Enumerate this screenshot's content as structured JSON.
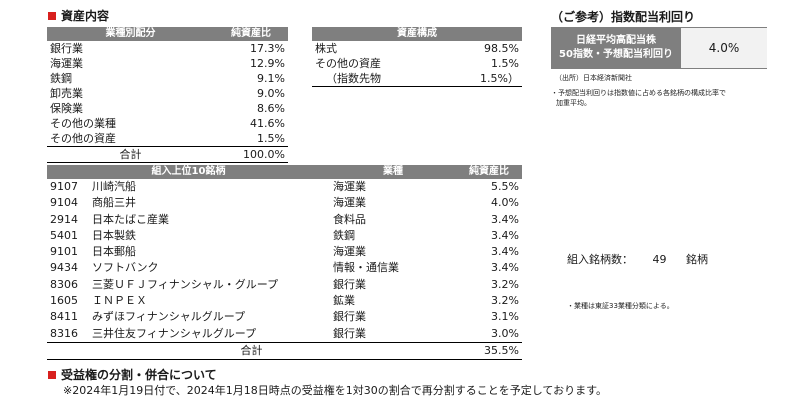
{
  "section1": {
    "title": "資産内容"
  },
  "industry": {
    "header": [
      "業種別配分",
      "純資産比"
    ],
    "rows": [
      {
        "name": "銀行業",
        "value": "17.3%"
      },
      {
        "name": "海運業",
        "value": "12.9%"
      },
      {
        "name": "鉄鋼",
        "value": "9.1%"
      },
      {
        "name": "卸売業",
        "value": "9.0%"
      },
      {
        "name": "保険業",
        "value": "8.6%"
      },
      {
        "name": "その他の業種",
        "value": "41.6%"
      },
      {
        "name": "その他の資産",
        "value": "1.5%"
      }
    ],
    "total_label": "合計",
    "total_value": "100.0%"
  },
  "composition": {
    "header": "資産構成",
    "rows": [
      {
        "name": "株式",
        "value": "98.5%"
      },
      {
        "name": "その他の資産",
        "value": "1.5%"
      },
      {
        "name": "（指数先物",
        "value": "1.5%）"
      }
    ]
  },
  "reference": {
    "title": "（ご参考）指数配当利回り",
    "label_line1": "日経平均高配当株",
    "label_line2": "50指数・予想配当利回り",
    "value": "4.0%",
    "source": "（出所）日本経済新聞社",
    "note1": "・予想配当利回りは指数値に占める各銘柄の構成比率で",
    "note2": "加重平均。"
  },
  "top10": {
    "header": [
      "組入上位10銘柄",
      "業種",
      "純資産比"
    ],
    "rows": [
      {
        "code": "9107",
        "name": "川崎汽船",
        "industry": "海運業",
        "value": "5.5%"
      },
      {
        "code": "9104",
        "name": "商船三井",
        "industry": "海運業",
        "value": "4.0%"
      },
      {
        "code": "2914",
        "name": "日本たばこ産業",
        "industry": "食料品",
        "value": "3.4%"
      },
      {
        "code": "5401",
        "name": "日本製鉄",
        "industry": "鉄鋼",
        "value": "3.4%"
      },
      {
        "code": "9101",
        "name": "日本郵船",
        "industry": "海運業",
        "value": "3.4%"
      },
      {
        "code": "9434",
        "name": "ソフトバンク",
        "industry": "情報・通信業",
        "value": "3.4%"
      },
      {
        "code": "8306",
        "name": "三菱ＵＦＪフィナンシャル・グループ",
        "industry": "銀行業",
        "value": "3.2%"
      },
      {
        "code": "1605",
        "name": "ＩＮＰＥＸ",
        "industry": "鉱業",
        "value": "3.2%"
      },
      {
        "code": "8411",
        "name": "みずほフィナンシャルグループ",
        "industry": "銀行業",
        "value": "3.1%"
      },
      {
        "code": "8316",
        "name": "三井住友フィナンシャルグループ",
        "industry": "銀行業",
        "value": "3.0%"
      }
    ],
    "total_label": "合計",
    "total_value": "35.5%"
  },
  "holdings": {
    "label": "組入銘柄数：",
    "count": "49",
    "unit": "銘柄"
  },
  "industry_note": "・業種は東証33業種分類による。",
  "section2": {
    "title": "受益権の分割・併合について",
    "text": "※2024年1月19日付で、2024年1月18日時点の受益権を1対30の割合で再分割することを予定しております。"
  }
}
